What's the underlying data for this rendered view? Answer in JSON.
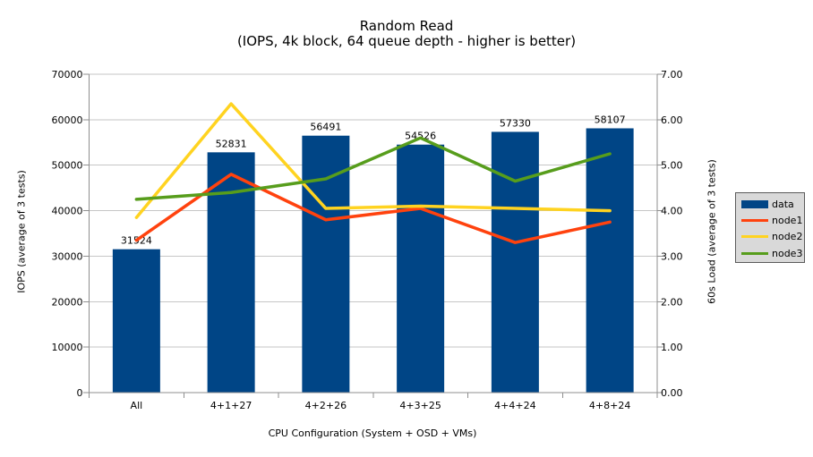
{
  "chart_data": {
    "type": "bar+line",
    "title": "Random Read",
    "subtitle": "(IOPS, 4k block, 64 queue depth - higher is better)",
    "xlabel": "CPU Configuration (System + OSD + VMs)",
    "ylabel_left": "IOPS (average of 3 tests)",
    "ylabel_right": "60s Load (average of 3 tests)",
    "categories": [
      "All",
      "4+1+27",
      "4+2+26",
      "4+3+25",
      "4+4+24",
      "4+8+24"
    ],
    "bar_series": {
      "name": "data",
      "color": "#004586",
      "axis": "left",
      "values": [
        31524,
        52831,
        56491,
        54526,
        57330,
        58107
      ]
    },
    "line_series": [
      {
        "name": "node1",
        "color": "#ff420e",
        "axis": "right",
        "values": [
          3.35,
          4.8,
          3.8,
          4.05,
          3.3,
          3.75
        ]
      },
      {
        "name": "node2",
        "color": "#ffd320",
        "axis": "right",
        "values": [
          3.85,
          6.35,
          4.05,
          4.1,
          4.05,
          4.0
        ]
      },
      {
        "name": "node3",
        "color": "#579d1c",
        "axis": "right",
        "values": [
          4.25,
          4.4,
          4.7,
          5.6,
          4.65,
          5.25
        ]
      }
    ],
    "left_axis": {
      "min": 0,
      "max": 70000,
      "step": 10000
    },
    "right_axis": {
      "min": 0,
      "max": 7,
      "step": 1,
      "decimals": 2
    },
    "legend_position": "right",
    "grid": "horizontal",
    "colors": {
      "grid": "#c6c6c6",
      "axis": "#8f8f8f",
      "legend_bg": "#d9d9d9",
      "legend_border": "#5b5b5b",
      "text": "#000000"
    }
  }
}
